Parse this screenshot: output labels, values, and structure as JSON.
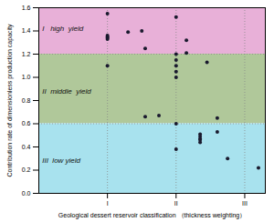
{
  "chart_data": {
    "type": "scatter",
    "xlabel": "Geological dessert reservoir classification （thickness weighting）",
    "ylabel": "Contribution rate of dimensionless production capacity",
    "x": [
      1.0,
      1.0,
      1.0,
      1.0,
      1.0,
      1.0,
      1.3,
      1.55,
      1.55,
      1.75,
      2.0,
      2.0,
      2.0,
      2.0,
      2.0,
      2.0,
      2.0,
      2.0,
      2.15,
      2.15,
      2.45,
      2.6,
      2.6,
      2.75,
      3.2,
      1.5,
      2.35,
      2.35,
      2.35,
      2.35,
      2.35
    ],
    "values": [
      1.55,
      1.36,
      1.35,
      1.34,
      1.33,
      1.1,
      1.39,
      1.25,
      0.66,
      0.67,
      1.52,
      1.2,
      1.15,
      1.1,
      1.05,
      1.0,
      0.6,
      0.38,
      1.32,
      1.21,
      1.13,
      0.65,
      0.53,
      0.3,
      0.22,
      1.4,
      0.51,
      0.49,
      0.47,
      0.46,
      0.44
    ],
    "color": "#1a1a2e",
    "xlim": [
      0,
      3.3
    ],
    "xticks": [
      {
        "value": 1,
        "label": "I"
      },
      {
        "value": 2,
        "label": "II"
      },
      {
        "value": 3,
        "label": "III"
      }
    ],
    "ylim": [
      0.0,
      1.6
    ],
    "yticks": [
      {
        "value": 0.0,
        "label": "0.0"
      },
      0.2,
      0.4,
      0.6,
      0.8,
      {
        "value": 1.0,
        "label": "1.0"
      },
      1.2,
      1.4,
      1.6
    ],
    "zones": [
      {
        "y1": 1.2,
        "y2": 1.6,
        "color": "#e8b0d8"
      },
      {
        "y1": 0.6,
        "y2": 1.2,
        "color": "#b0c89a"
      },
      {
        "y1": 0.0,
        "y2": 0.6,
        "color": "#a8e2ee"
      }
    ],
    "vlines": {
      "values": [
        1,
        2,
        3
      ],
      "color": "#888888",
      "line_style": "dotted"
    },
    "hlines": {
      "values": [
        0.6,
        1.2
      ],
      "color": "#888888",
      "line_style": "dotted"
    },
    "annotations": [
      {
        "text": "I   high  yield",
        "x": 0.05,
        "y": 1.42
      },
      {
        "text": "II  middle  yield",
        "x": 0.05,
        "y": 0.88
      },
      {
        "text": "III  low yield",
        "x": 0.05,
        "y": 0.28
      }
    ],
    "grid": false
  }
}
